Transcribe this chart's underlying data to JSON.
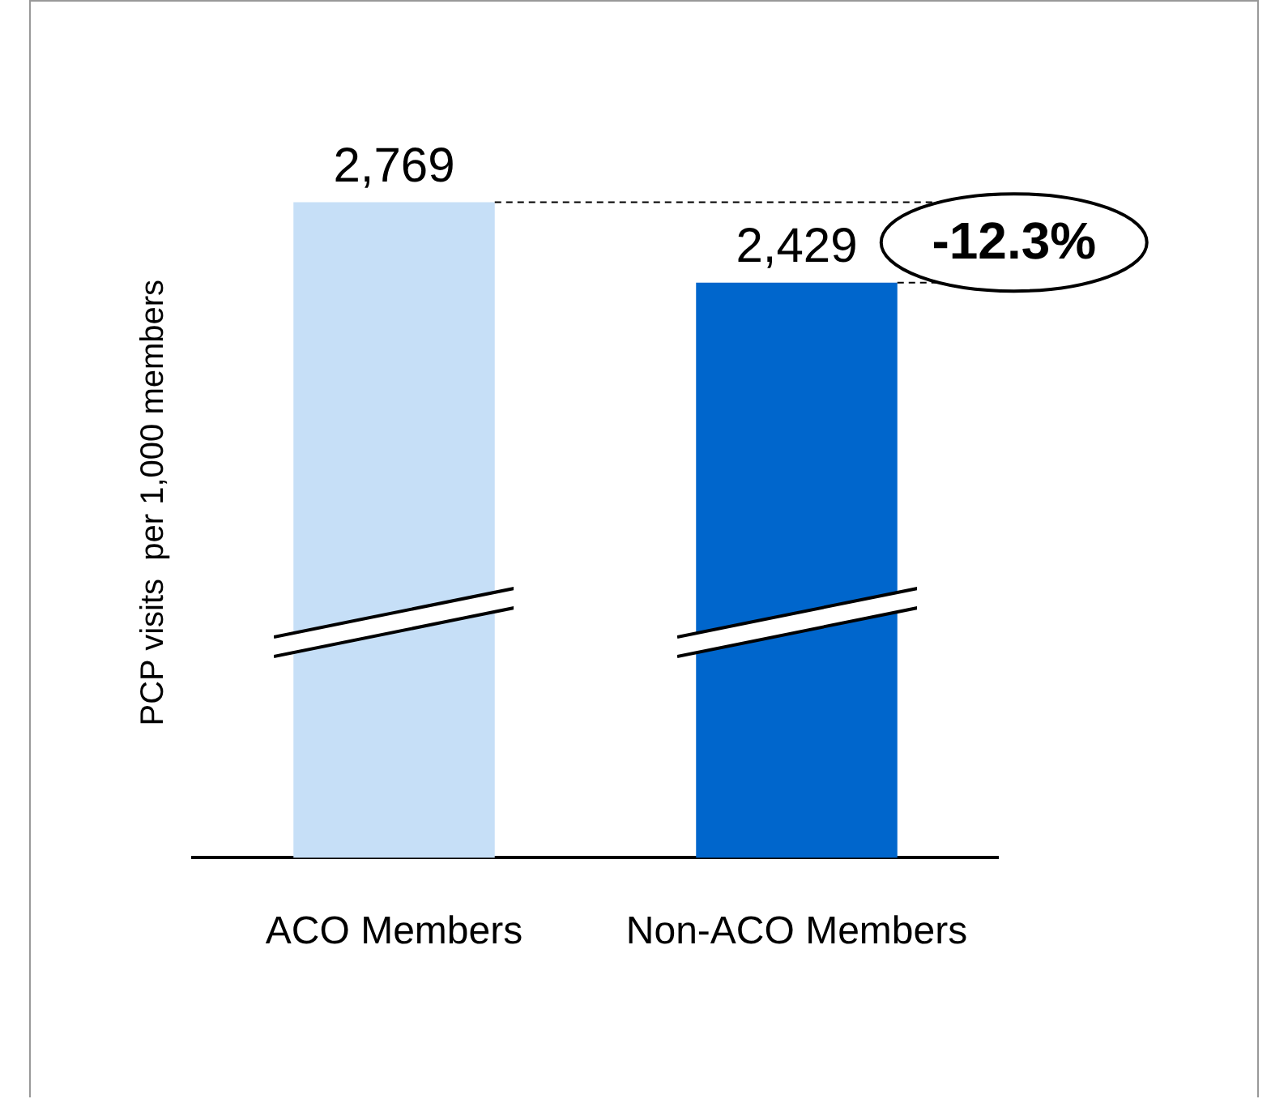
{
  "chart_data": {
    "type": "bar",
    "ylabel": "PCP visits  per 1,000 members",
    "categories": [
      "ACO Members",
      "Non-ACO Members"
    ],
    "values": [
      2769,
      2429
    ],
    "colors": [
      "#c6dff7",
      "#0066cc"
    ],
    "value_labels": [
      "2,769",
      "2,429"
    ],
    "legend": false,
    "grid": false,
    "annotations": [
      "-12.3%"
    ]
  }
}
